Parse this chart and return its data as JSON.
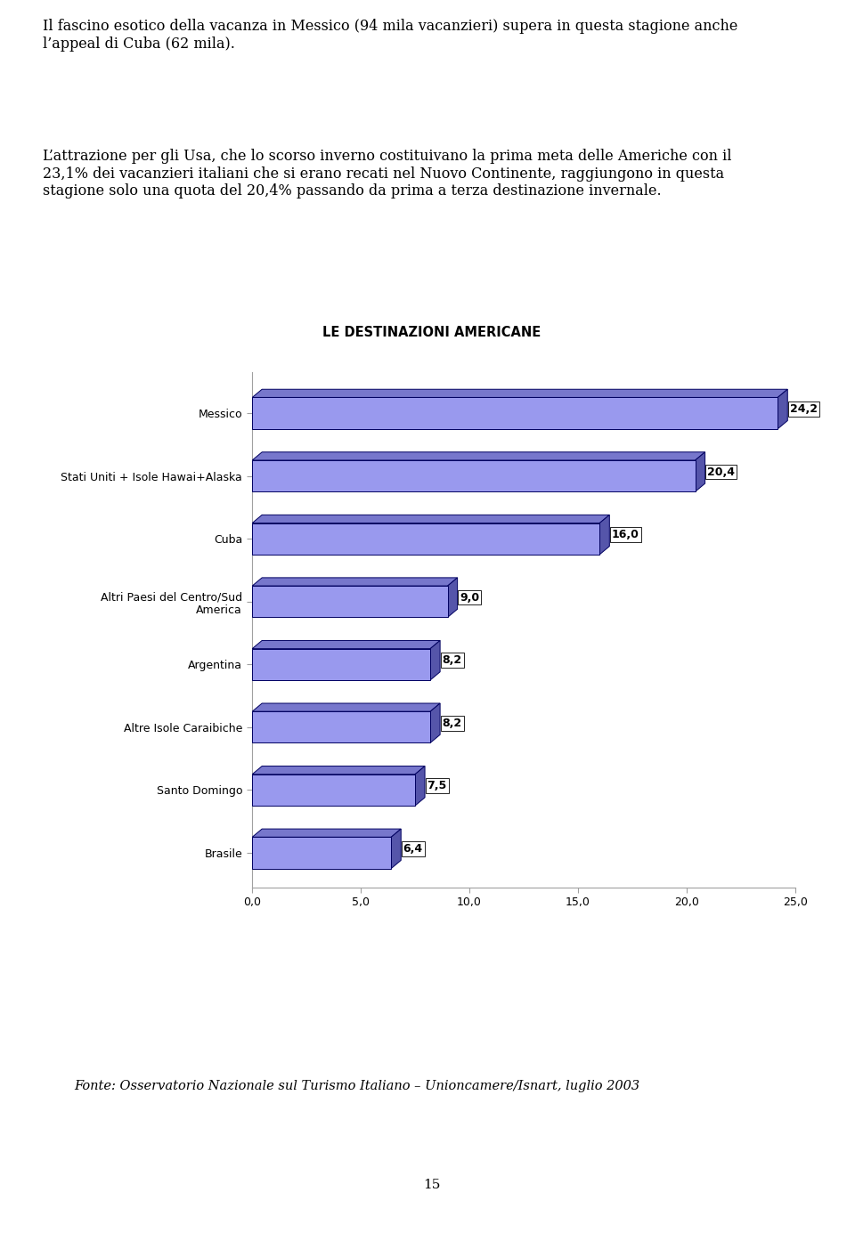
{
  "title": "LE DESTINAZIONI AMERICANE",
  "categories": [
    "Messico",
    "Stati Uniti + Isole Hawai+Alaska",
    "Cuba",
    "Altri Paesi del Centro/Sud\nAmerica",
    "Argentina",
    "Altre Isole Caraibiche",
    "Santo Domingo",
    "Brasile"
  ],
  "values": [
    24.2,
    20.4,
    16.0,
    9.0,
    8.2,
    8.2,
    7.5,
    6.4
  ],
  "xlim": [
    0,
    25.0
  ],
  "xticks": [
    0.0,
    5.0,
    10.0,
    15.0,
    20.0,
    25.0
  ],
  "xtick_labels": [
    "0,0",
    "5,0",
    "10,0",
    "15,0",
    "20,0",
    "25,0"
  ],
  "bar_front_color": "#9999EE",
  "bar_top_color": "#7777CC",
  "bar_right_color": "#5555AA",
  "bar_edge_color": "#000060",
  "header_text_1": "Il fascino esotico della vacanza in Messico (94 mila vacanzieri) supera in questa stagione anche l’appeal di Cuba (62 mila).",
  "header_text_2": "L’attrazione per gli Usa, che lo scorso inverno costituivano la prima meta delle Americhe con il 23,1% dei vacanzieri italiani che si erano recati nel Nuovo Continente, raggiungono in questa stagione solo una quota del 20,4% passando da prima a terza destinazione invernale.",
  "footer_text": "Fonte: Osservatorio Nazionale sul Turismo Italiano – Unioncamere/Isnart, luglio 2003",
  "page_number": "15",
  "background_color": "#ffffff",
  "wall_color": "#C0C0C0",
  "floor_color": "#C8C8C8"
}
